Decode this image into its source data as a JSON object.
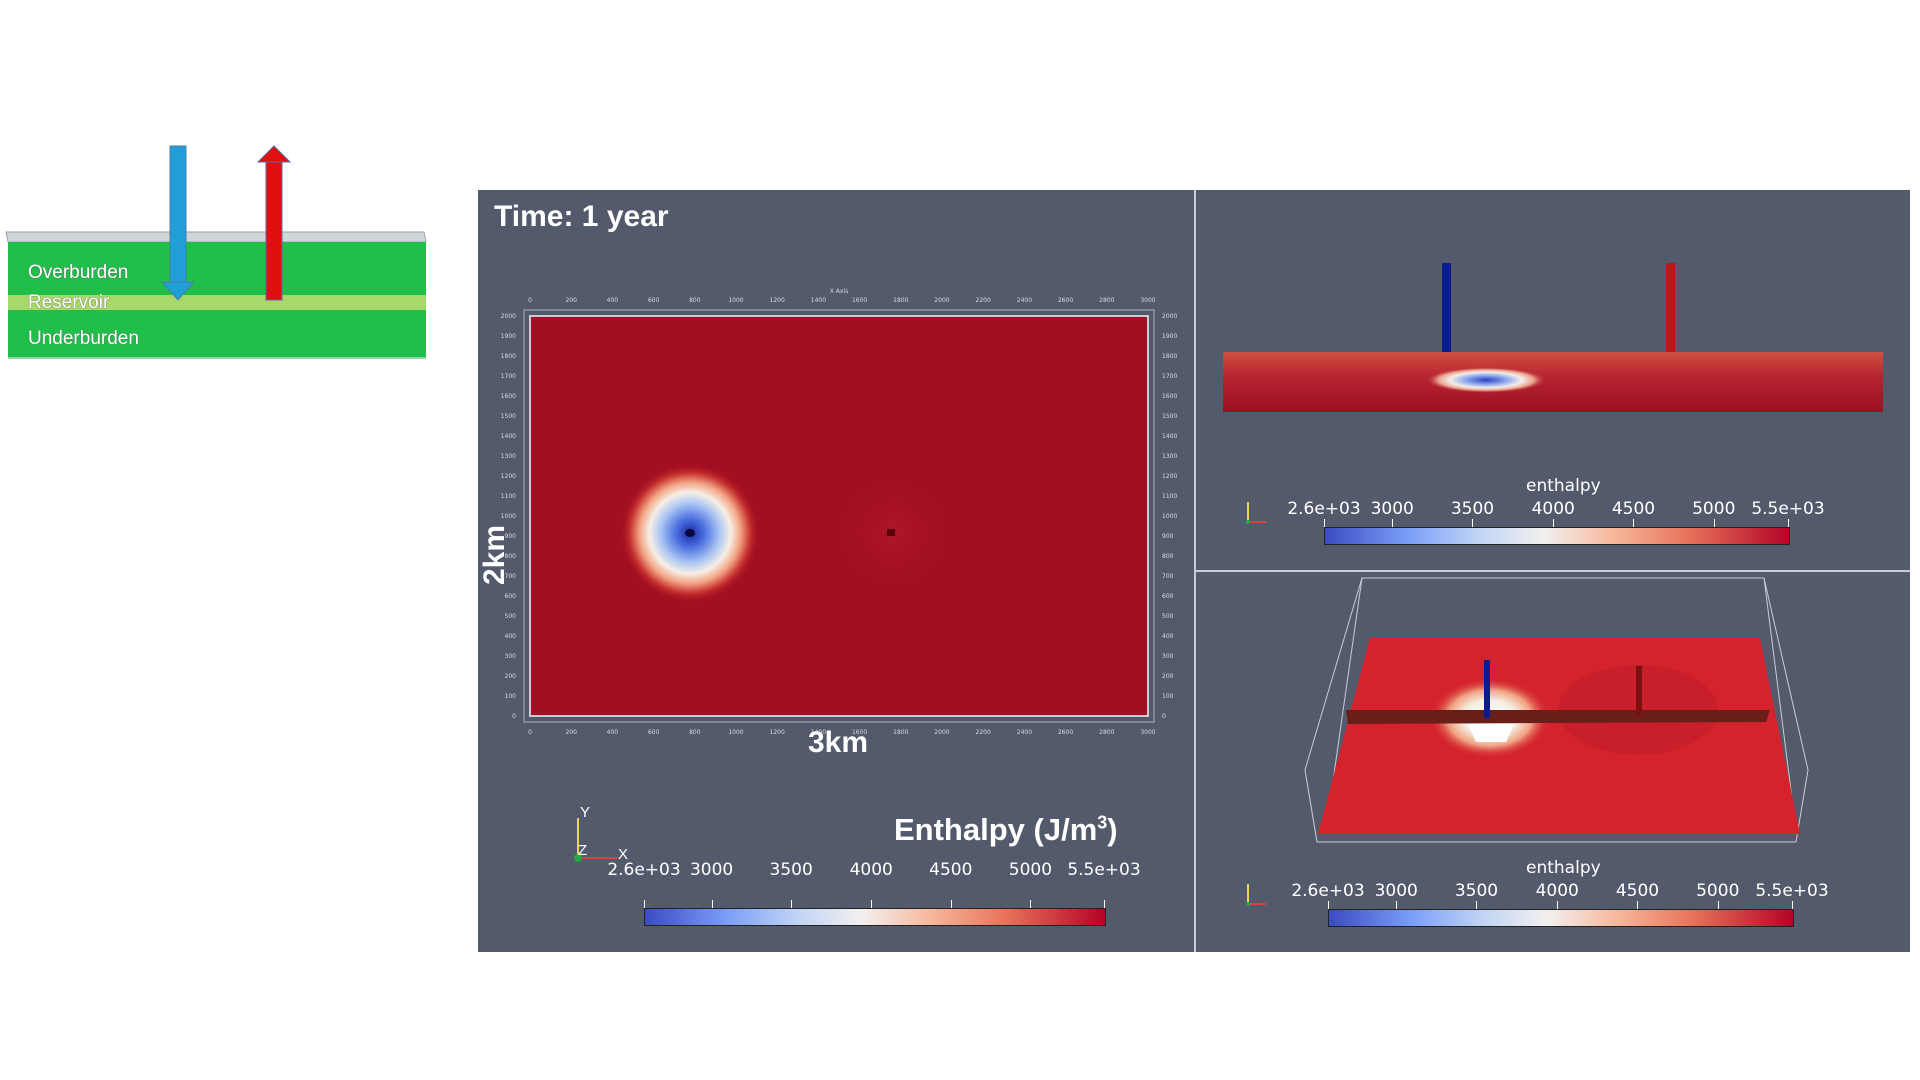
{
  "schematic": {
    "layers": [
      "Overburden",
      "Reservoir",
      "Underburden"
    ],
    "injector_color": "#1f9ed8",
    "producer_color": "#e01010",
    "layer_color": "#1fbf4a",
    "reservoir_color": "#a8d86a"
  },
  "main_view": {
    "time_label": "Time: 1 year",
    "width_label": "3km",
    "height_label": "2km",
    "colorbar_title": "Enthalpy (J/m",
    "colorbar_title_sup": "3",
    "colorbar_title_end": ")",
    "ticks": [
      "2.6e+03",
      "3000",
      "3500",
      "4000",
      "4500",
      "5000",
      "5.5e+03"
    ],
    "axis_x_label": "X Axis",
    "axis_x_ticks": [
      "0",
      "200",
      "400",
      "600",
      "800",
      "1000",
      "1200",
      "1400",
      "1600",
      "1800",
      "2000",
      "2200",
      "2400",
      "2600",
      "2800",
      "3000"
    ],
    "axis_y_ticks": [
      "2000",
      "1900",
      "1800",
      "1700",
      "1600",
      "1500",
      "1400",
      "1300",
      "1200",
      "1100",
      "1000",
      "900",
      "800",
      "700",
      "600",
      "500",
      "400",
      "300",
      "200",
      "100",
      "0"
    ],
    "orientation": {
      "y": "Y",
      "z": "Z",
      "x": "X"
    }
  },
  "side_view": {
    "colorbar_title": "enthalpy",
    "ticks": [
      "2.6e+03",
      "3000",
      "3500",
      "4000",
      "4500",
      "5000",
      "5.5e+03"
    ]
  },
  "perspective_view": {
    "colorbar_title": "enthalpy",
    "ticks": [
      "2.6e+03",
      "3000",
      "3500",
      "4000",
      "4500",
      "5000",
      "5.5e+03"
    ]
  },
  "colors": {
    "background": "#535a6c",
    "field": "#a30f22",
    "cold": "#3b4cc0",
    "hot": "#b40426"
  }
}
